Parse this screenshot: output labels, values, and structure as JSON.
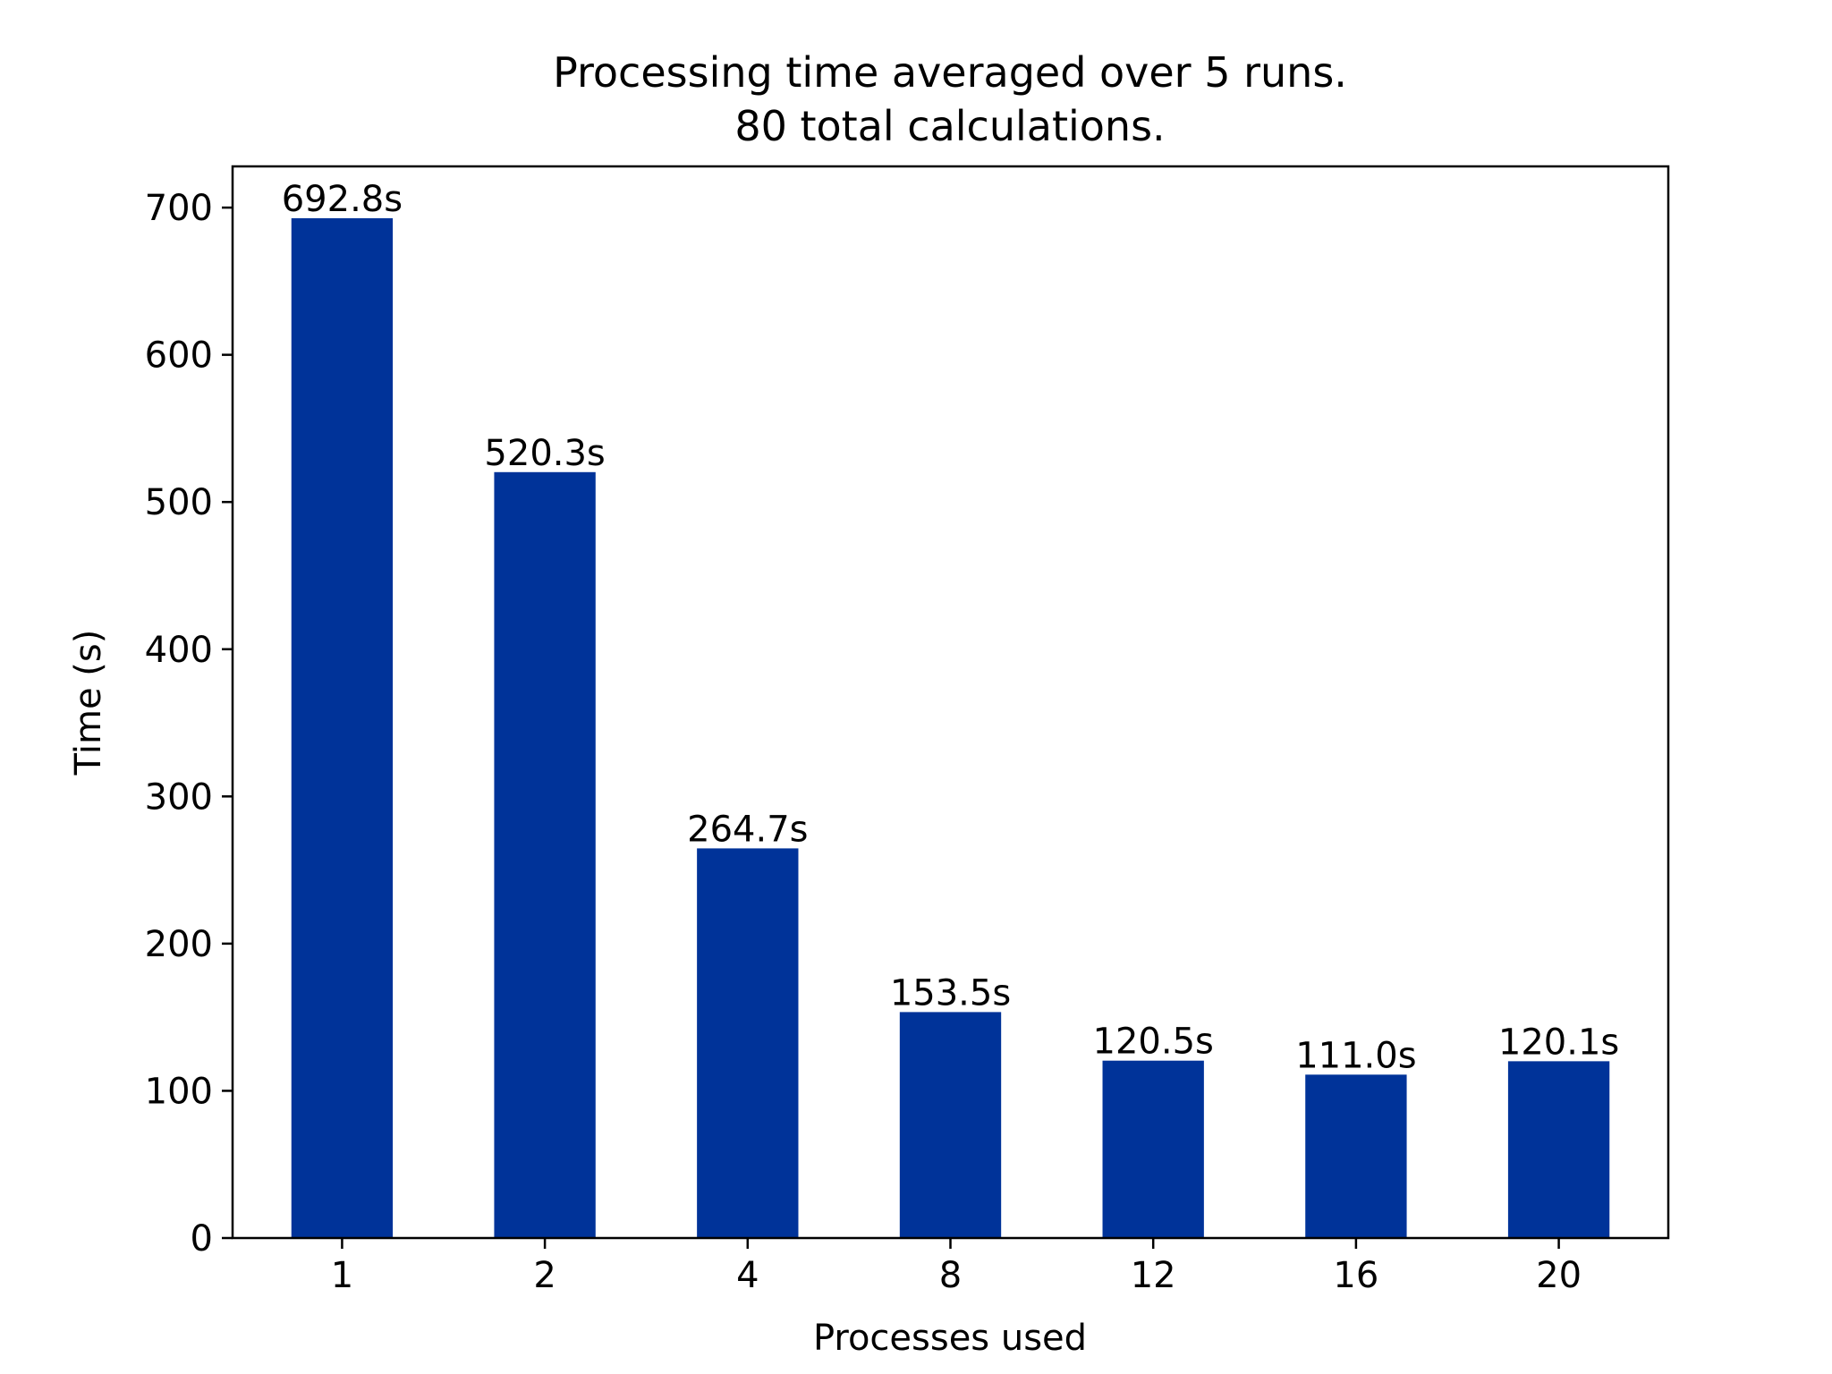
{
  "chart_data": {
    "type": "bar",
    "title": "Processing time averaged over 5 runs.",
    "subtitle": "80 total calculations.",
    "xlabel": "Processes used",
    "ylabel": "Time (s)",
    "categories": [
      "1",
      "2",
      "4",
      "8",
      "12",
      "16",
      "20"
    ],
    "values": [
      692.8,
      520.3,
      264.7,
      153.5,
      120.5,
      111.0,
      120.1
    ],
    "data_labels": [
      "692.8s",
      "520.3s",
      "264.7s",
      "153.5s",
      "120.5s",
      "111.0s",
      "120.1s"
    ],
    "yticks": [
      0,
      100,
      200,
      300,
      400,
      500,
      600,
      700
    ],
    "ylim": [
      0,
      728
    ],
    "grid": false,
    "legend": "none",
    "bar_color": "#003399"
  }
}
